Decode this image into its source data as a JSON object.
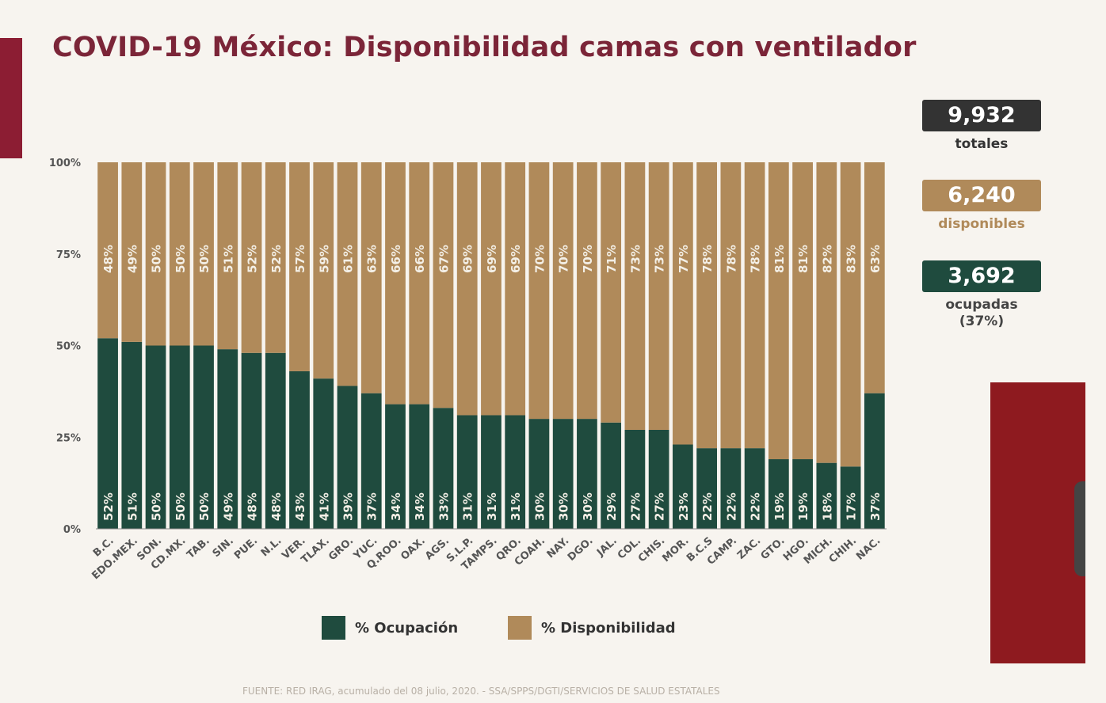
{
  "title": "COVID-19 México: Disponibilidad camas con ventilador",
  "stats": {
    "totales": {
      "value": "9,932",
      "label": "totales",
      "color": "#333333"
    },
    "disponibles": {
      "value": "6,240",
      "label": "disponibles",
      "color": "#b08a5a"
    },
    "ocupadas": {
      "value": "3,692",
      "label": "ocupadas",
      "sub": "(37%)",
      "color": "#1f4b3e"
    }
  },
  "source": "FUENTE: RED IRAG, acumulado del 08 julio, 2020. - SSA/SPPS/DGTI/SERVICIOS DE SALUD ESTATALES",
  "chart_data": {
    "type": "bar",
    "stacked": true,
    "ylim": [
      0,
      100
    ],
    "yticks": [
      "0%",
      "25%",
      "50%",
      "75%",
      "100%"
    ],
    "legend_position": "bottom",
    "categories": [
      "B.C.",
      "EDO.MEX.",
      "SON.",
      "CD.MX.",
      "TAB.",
      "SIN.",
      "PUE.",
      "N.L.",
      "VER.",
      "TLAX.",
      "GRO.",
      "YUC.",
      "Q.ROO.",
      "OAX.",
      "AGS.",
      "S.L.P.",
      "TAMPS.",
      "QRO.",
      "COAH.",
      "NAY.",
      "DGO.",
      "JAL.",
      "COL.",
      "CHIS.",
      "MOR.",
      "B.C.S",
      "CAMP.",
      "ZAC.",
      "GTO.",
      "HGO.",
      "MICH.",
      "CHIH.",
      "NAC."
    ],
    "series": [
      {
        "name": "% Ocupación",
        "color": "#1f4b3e",
        "values": [
          52,
          51,
          50,
          50,
          50,
          49,
          48,
          48,
          43,
          41,
          39,
          37,
          34,
          34,
          33,
          31,
          31,
          31,
          30,
          30,
          30,
          29,
          27,
          27,
          23,
          22,
          22,
          22,
          19,
          19,
          18,
          17,
          37
        ]
      },
      {
        "name": "% Disponibilidad",
        "color": "#b08a5a",
        "values": [
          48,
          49,
          50,
          50,
          50,
          51,
          52,
          52,
          57,
          59,
          61,
          63,
          66,
          66,
          67,
          69,
          69,
          69,
          70,
          70,
          70,
          71,
          73,
          73,
          77,
          78,
          78,
          78,
          81,
          81,
          82,
          83,
          63
        ]
      }
    ]
  }
}
